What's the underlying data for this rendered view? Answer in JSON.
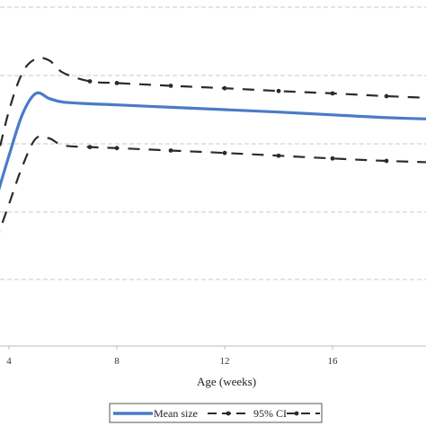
{
  "chart_data": {
    "type": "line",
    "title": "",
    "xlabel": "Age (weeks)",
    "ylabel": "",
    "xlim": [
      4,
      20
    ],
    "ylim": [
      0,
      1
    ],
    "x_ticks": [
      4,
      8,
      12,
      16
    ],
    "x_tick_labels": [
      "4",
      "8",
      "12",
      "16"
    ],
    "grid": "horizontal dashed",
    "legend_position": "bottom",
    "legend_entries": [
      "Mean size",
      "95% CI"
    ],
    "colors": {
      "mean": "#4a7bc8",
      "ci": "#2b2b2b",
      "grid": "#c8c8c8"
    },
    "series": [
      {
        "name": "Mean size",
        "style": "solid",
        "points": [
          [
            3.5,
            0.42
          ],
          [
            4,
            0.55
          ],
          [
            4.5,
            0.67
          ],
          [
            5,
            0.73
          ],
          [
            5.5,
            0.715
          ],
          [
            6,
            0.705
          ],
          [
            7,
            0.7
          ],
          [
            8,
            0.697
          ],
          [
            10,
            0.69
          ],
          [
            12,
            0.683
          ],
          [
            14,
            0.676
          ],
          [
            16,
            0.668
          ],
          [
            18,
            0.66
          ],
          [
            20,
            0.655
          ]
        ]
      },
      {
        "name": "95% CI",
        "style": "dashed-dot",
        "points": [
          [
            3.5,
            0.3
          ],
          [
            4,
            0.41
          ],
          [
            4.5,
            0.52
          ],
          [
            5,
            0.6
          ],
          [
            5.5,
            0.6
          ],
          [
            6,
            0.58
          ],
          [
            7,
            0.575
          ],
          [
            8,
            0.572
          ],
          [
            10,
            0.565
          ],
          [
            12,
            0.558
          ],
          [
            14,
            0.55
          ],
          [
            16,
            0.542
          ],
          [
            18,
            0.535
          ],
          [
            20,
            0.53
          ]
        ]
      },
      {
        "name": "95% CI",
        "style": "dashed-dot",
        "points": [
          [
            3.5,
            0.52
          ],
          [
            4,
            0.68
          ],
          [
            4.5,
            0.79
          ],
          [
            5,
            0.83
          ],
          [
            5.5,
            0.825
          ],
          [
            6,
            0.79
          ],
          [
            7,
            0.765
          ],
          [
            8,
            0.76
          ],
          [
            10,
            0.752
          ],
          [
            12,
            0.745
          ],
          [
            14,
            0.737
          ],
          [
            16,
            0.73
          ],
          [
            18,
            0.722
          ],
          [
            20,
            0.716
          ]
        ]
      }
    ]
  }
}
